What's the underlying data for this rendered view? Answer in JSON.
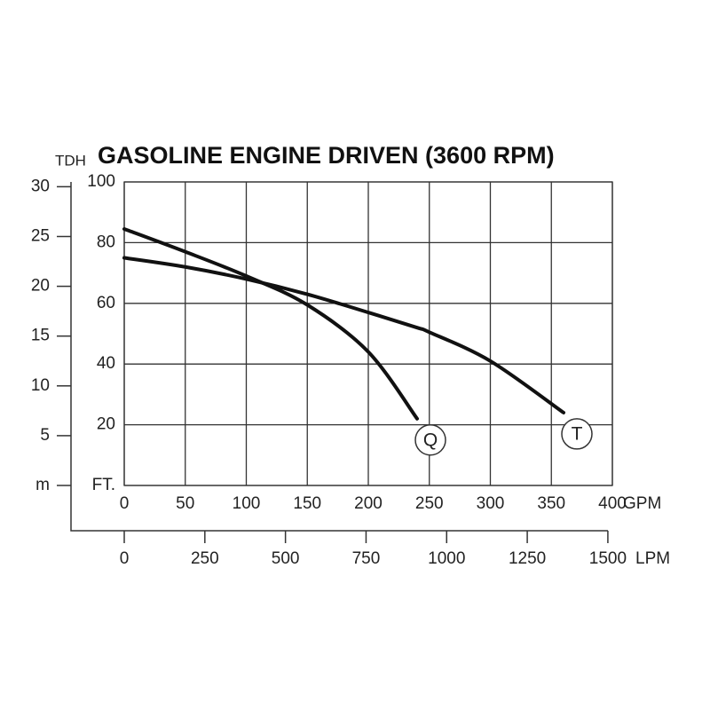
{
  "chart_data": {
    "type": "line",
    "title": "GASOLINE ENGINE DRIVEN (3600 RPM)",
    "y_label": "TDH",
    "x_unit": "GPM",
    "x2_unit": "LPM",
    "x": [
      0,
      50,
      100,
      150,
      200,
      240,
      250,
      300,
      360
    ],
    "series": [
      {
        "name": "Q",
        "color": "#111111",
        "values": [
          84.5,
          77,
          69,
          59.5,
          44,
          22,
          null,
          null,
          null
        ]
      },
      {
        "name": "T",
        "color": "#111111",
        "values": [
          75,
          72,
          68,
          63,
          57,
          52,
          50.5,
          41,
          24
        ]
      }
    ],
    "xlim": [
      0,
      400
    ],
    "xticks": [
      0,
      50,
      100,
      150,
      200,
      250,
      300,
      350,
      400
    ],
    "x2lim": [
      0,
      1514
    ],
    "x2ticks": [
      0,
      250,
      500,
      750,
      1000,
      1250,
      1500
    ],
    "ylim": [
      0,
      100
    ],
    "yticks": [
      {
        "value": 0,
        "label": "FT."
      },
      20,
      40,
      60,
      80,
      100
    ],
    "y2lim": [
      0,
      30.48
    ],
    "y2ticks": [
      {
        "value": 0,
        "label": "m"
      },
      5,
      10,
      15,
      20,
      25,
      30
    ],
    "grid": true
  }
}
